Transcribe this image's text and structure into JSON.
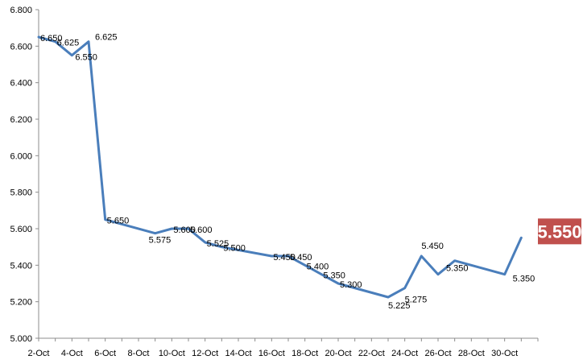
{
  "chart_data": {
    "type": "line",
    "title": "",
    "xlabel": "",
    "ylabel": "",
    "ylim": [
      5.0,
      6.8
    ],
    "yticks": [
      "5.000",
      "5.200",
      "5.400",
      "5.600",
      "5.800",
      "6.000",
      "6.200",
      "6.400",
      "6.600",
      "6.800"
    ],
    "xlim": [
      2,
      32
    ],
    "xticks": [
      "2-Oct",
      "4-Oct",
      "6-Oct",
      "8-Oct",
      "10-Oct",
      "12-Oct",
      "14-Oct",
      "16-Oct",
      "18-Oct",
      "20-Oct",
      "22-Oct",
      "24-Oct",
      "26-Oct",
      "28-Oct",
      "30-Oct"
    ],
    "grid": false,
    "line_color": "#4A7EBB",
    "series": [
      {
        "points": [
          {
            "x": 2,
            "y": 6.65,
            "label": "6.650"
          },
          {
            "x": 3,
            "y": 6.625,
            "label": "6.625"
          },
          {
            "x": 4,
            "y": 6.55,
            "label": "6.550"
          },
          {
            "x": 5,
            "y": 6.625,
            "label": "6.625"
          },
          {
            "x": 6,
            "y": 5.65,
            "label": "5.650"
          },
          {
            "x": 9,
            "y": 5.575,
            "label": "5.575"
          },
          {
            "x": 10,
            "y": 5.6,
            "label": "5.600"
          },
          {
            "x": 11,
            "y": 5.6,
            "label": "5.600"
          },
          {
            "x": 12,
            "y": 5.525,
            "label": "5.525"
          },
          {
            "x": 13,
            "y": 5.5,
            "label": "5.500"
          },
          {
            "x": 16,
            "y": 5.45,
            "label": "5.450"
          },
          {
            "x": 17,
            "y": 5.45,
            "label": "5.450"
          },
          {
            "x": 18,
            "y": 5.4,
            "label": "5.400"
          },
          {
            "x": 19,
            "y": 5.35,
            "label": "5.350"
          },
          {
            "x": 20,
            "y": 5.3,
            "label": "5.300"
          },
          {
            "x": 23,
            "y": 5.225,
            "label": "5.225"
          },
          {
            "x": 24,
            "y": 5.275,
            "label": "5.275"
          },
          {
            "x": 25,
            "y": 5.45,
            "label": "5.450"
          },
          {
            "x": 26,
            "y": 5.35,
            "label": "5.350"
          },
          {
            "x": 27,
            "y": 5.425,
            "label": ""
          },
          {
            "x": 30,
            "y": 5.35,
            "label": "5.350"
          },
          {
            "x": 31,
            "y": 5.55,
            "label": ""
          }
        ]
      }
    ],
    "last_value_badge": {
      "text": "5.550",
      "background": "#C0504D",
      "color": "#ffffff"
    }
  }
}
